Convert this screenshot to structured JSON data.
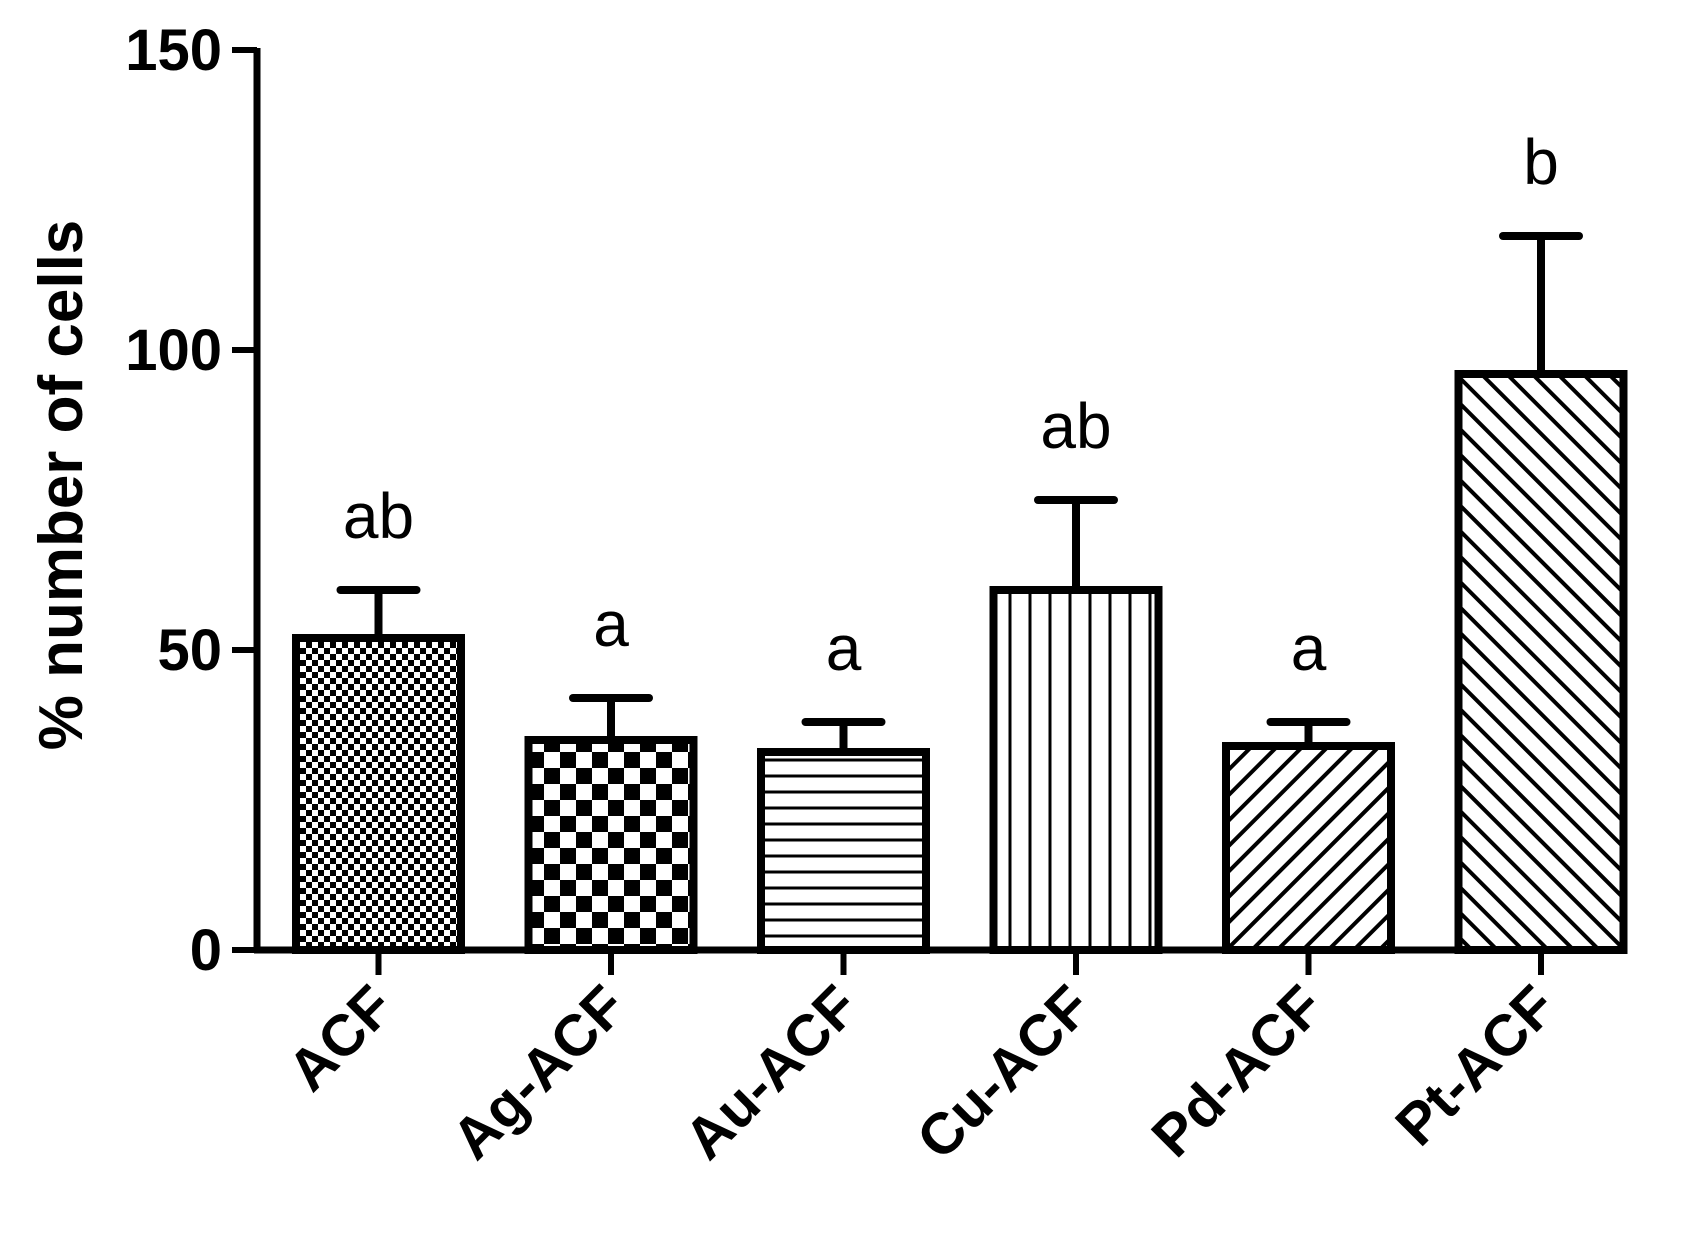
{
  "chart_data": {
    "type": "bar",
    "title": "",
    "xlabel": "",
    "ylabel": "% number of cells",
    "ylim": [
      0,
      150
    ],
    "yticks": [
      "0",
      "50",
      "100",
      "150"
    ],
    "categories": [
      "ACF",
      "Ag-ACF",
      "Au-ACF",
      "Cu-ACF",
      "Pd-ACF",
      "Pt-ACF"
    ],
    "values": [
      52,
      35,
      33,
      60,
      34,
      96
    ],
    "errors": [
      8,
      7,
      5,
      15,
      4,
      23
    ],
    "significance_labels": [
      "ab",
      "a",
      "a",
      "ab",
      "a",
      "b"
    ],
    "patterns": [
      "fine-checker",
      "coarse-checker",
      "horizontal-lines",
      "vertical-lines",
      "diagonal-up",
      "diagonal-down"
    ],
    "colors": {
      "stroke": "#000000",
      "fill": "#ffffff"
    },
    "grid": false
  }
}
